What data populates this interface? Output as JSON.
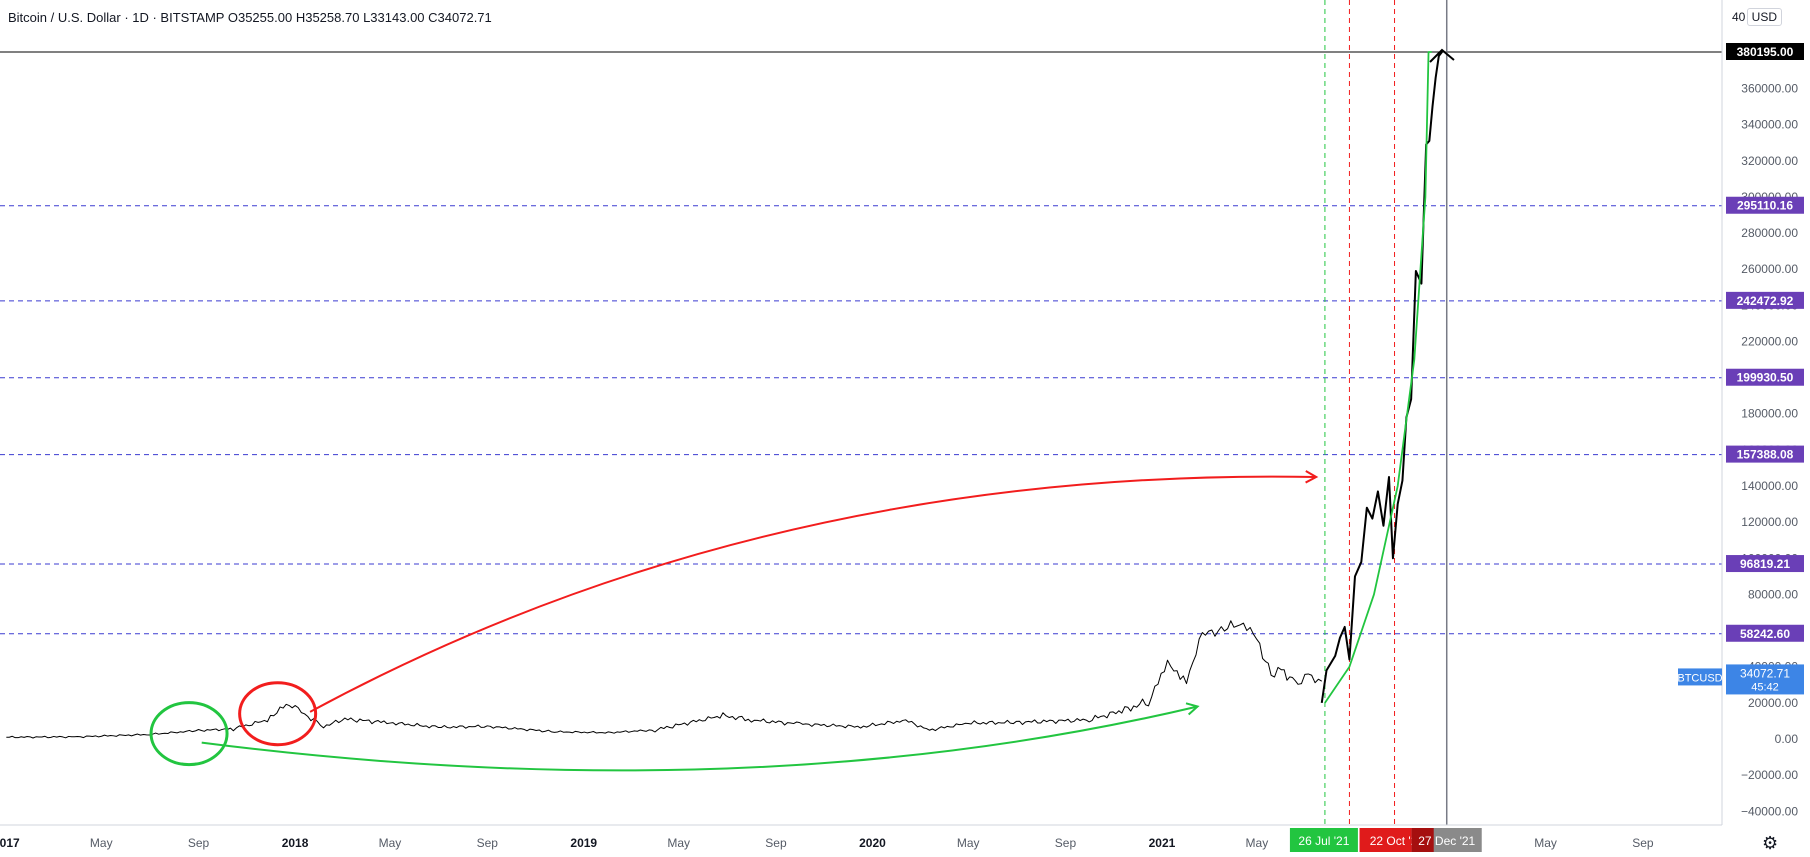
{
  "legend": {
    "symbol": "Bitcoin / U.S. Dollar · 1D · BITSTAMP",
    "open": "O35255.00",
    "high": "H35258.70",
    "low": "L33143.00",
    "close": "C34072.71"
  },
  "currency": "USD",
  "currency_top_partial": "40",
  "colors": {
    "price": "#000000",
    "green": "#22c540",
    "red": "#f21d1d",
    "level_line": "#3b3bd1",
    "level_label_bg": "#6a3fb7",
    "axis_text": "#555b66",
    "btc_label_bg": "#3d85e6"
  },
  "chart_data": {
    "type": "line",
    "title": "",
    "series": [
      {
        "name": "BTCUSD",
        "x": [
          "2017-01-01",
          "2017-04-01",
          "2017-07-01",
          "2017-09-01",
          "2017-10-15",
          "2017-12-01",
          "2017-12-17",
          "2018-01-05",
          "2018-02-06",
          "2018-03-05",
          "2018-05-01",
          "2018-07-01",
          "2018-09-01",
          "2018-11-25",
          "2019-02-01",
          "2019-04-01",
          "2019-06-26",
          "2019-08-01",
          "2019-10-01",
          "2019-12-17",
          "2020-02-12",
          "2020-03-13",
          "2020-05-01",
          "2020-07-01",
          "2020-10-01",
          "2020-11-15",
          "2020-12-15",
          "2021-01-08",
          "2021-02-01",
          "2021-02-21",
          "2021-03-13",
          "2021-04-14",
          "2021-05-01",
          "2021-05-19",
          "2021-06-01",
          "2021-06-22",
          "2021-07-05",
          "2021-07-22"
        ],
        "y": [
          1000,
          1200,
          2500,
          4700,
          5600,
          11000,
          19500,
          16000,
          7000,
          11000,
          9000,
          6500,
          7000,
          4000,
          3500,
          5000,
          13000,
          10500,
          8300,
          6700,
          10300,
          4900,
          8800,
          9200,
          10600,
          16000,
          21000,
          41000,
          33000,
          57000,
          61000,
          63500,
          55000,
          36000,
          37000,
          32000,
          34000,
          32000
        ]
      },
      {
        "name": "Projection (black)",
        "x": [
          "2021-07-22",
          "2021-07-28",
          "2021-08-08",
          "2021-08-14",
          "2021-08-20",
          "2021-08-26",
          "2021-09-02",
          "2021-09-10",
          "2021-09-17",
          "2021-09-24",
          "2021-10-01",
          "2021-10-08",
          "2021-10-15",
          "2021-10-20",
          "2021-10-26",
          "2021-11-01",
          "2021-11-06",
          "2021-11-12",
          "2021-11-18",
          "2021-11-25",
          "2021-12-01",
          "2021-12-05",
          "2021-12-09",
          "2021-12-13",
          "2021-12-17",
          "2021-12-21"
        ],
        "y": [
          20000,
          38000,
          46000,
          56000,
          62000,
          44000,
          90000,
          98000,
          128000,
          122000,
          137000,
          118000,
          145000,
          100000,
          130000,
          143000,
          178000,
          188000,
          259000,
          252000,
          329000,
          331000,
          350000,
          366000,
          378000,
          380195
        ]
      },
      {
        "name": "Projection (green)",
        "x": [
          "2021-07-26",
          "2021-08-26",
          "2021-09-26",
          "2021-10-26",
          "2021-11-16",
          "2021-11-30",
          "2021-12-04",
          "2021-12-08"
        ],
        "y": [
          20000,
          40000,
          80000,
          140000,
          210000,
          300000,
          380195,
          380195
        ]
      }
    ],
    "levels": [
      {
        "value": 380195.0,
        "label": "380195.00"
      },
      {
        "value": 295110.16,
        "label": "295110.16"
      },
      {
        "value": 242472.92,
        "label": "242472.92"
      },
      {
        "value": 199930.5,
        "label": "199930.50"
      },
      {
        "value": 157388.08,
        "label": "157388.08"
      },
      {
        "value": 96819.21,
        "label": "96819.21"
      },
      {
        "value": 58242.6,
        "label": "58242.60"
      }
    ],
    "last_price": {
      "symbol": "BTCUSD",
      "value": "34072.71",
      "countdown": "45:42",
      "y": 34072.71
    },
    "vertical_markers": [
      {
        "date": "2021-07-26",
        "label": "26 Jul '21",
        "color": "green"
      },
      {
        "date": "2021-08-26",
        "label": "",
        "color": "red"
      },
      {
        "date": "2021-10-22",
        "label": "22 Oct '2",
        "color": "red"
      },
      {
        "date": "2021-12-27",
        "label": "27 Dec '21",
        "color": "gray"
      }
    ],
    "yaxis": {
      "ticks": [
        360000,
        340000,
        320000,
        300000,
        280000,
        260000,
        240000,
        220000,
        200000,
        180000,
        160000,
        140000,
        120000,
        100000,
        80000,
        60000,
        40000,
        20000,
        0,
        -20000,
        -40000
      ],
      "tick_labels": [
        "360000.00",
        "340000.00",
        "320000.00",
        "300000.00",
        "280000.00",
        "260000.00",
        "240000.00",
        "220000.00",
        "200000.00",
        "180000.00",
        "160000.00",
        "140000.00",
        "120000.00",
        "100000.00",
        "80000.00",
        "60000.00",
        "40000.00",
        "20000.00",
        "0.00",
        "−20000.00",
        "−40000.00"
      ],
      "range": [
        -46000,
        400000
      ]
    },
    "xaxis": {
      "ticks": [
        "2017-01-01",
        "2017-05-01",
        "2017-09-01",
        "2018-01-01",
        "2018-05-01",
        "2018-09-01",
        "2019-01-01",
        "2019-05-01",
        "2019-09-01",
        "2020-01-01",
        "2020-05-01",
        "2020-09-01",
        "2021-01-01",
        "2021-05-01",
        "2022-05-01",
        "2022-09-01"
      ],
      "tick_labels": [
        "2017",
        "May",
        "Sep",
        "2018",
        "May",
        "Sep",
        "2019",
        "May",
        "Sep",
        "2020",
        "May",
        "Sep",
        "2021",
        "May",
        "May",
        "Sep"
      ],
      "range": [
        "2016-12-24",
        "2022-12-10"
      ]
    },
    "annotations": [
      {
        "type": "ellipse",
        "color": "green",
        "date": "2017-08-20",
        "value": 3000
      },
      {
        "type": "ellipse",
        "color": "red",
        "date": "2017-12-10",
        "value": 14000
      },
      {
        "type": "arrow",
        "color": "red",
        "from": [
          "2018-01-20",
          15000
        ],
        "to": [
          "2021-07-15",
          145000
        ]
      },
      {
        "type": "arrow",
        "color": "green",
        "from": [
          "2017-09-05",
          -2000
        ],
        "to": [
          "2021-02-15",
          18000
        ]
      }
    ],
    "grid": false
  }
}
